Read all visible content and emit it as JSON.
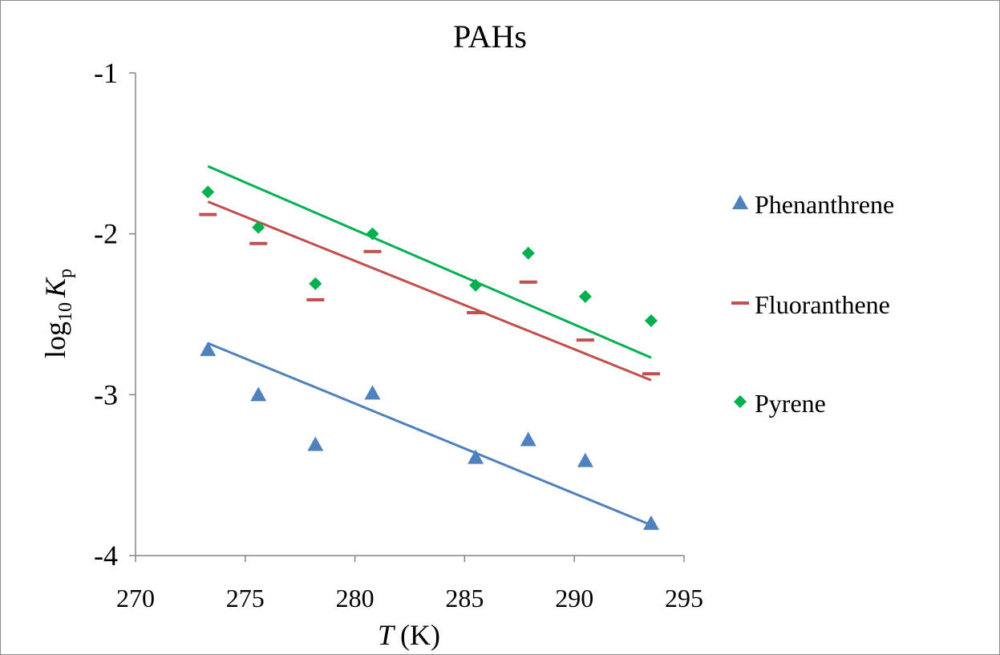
{
  "chart_data": {
    "type": "scatter",
    "title": "PAHs",
    "xlabel": {
      "var": "T",
      "unit": "(K)"
    },
    "ylabel": {
      "base": "log",
      "sub": "10",
      "var": "K",
      "varsub": "p"
    },
    "xlim": [
      270,
      295
    ],
    "ylim": [
      -4,
      -1
    ],
    "xticks": [
      "270",
      "275",
      "280",
      "285",
      "290",
      "295"
    ],
    "yticks": [
      "-1",
      "-2",
      "-3",
      "-4"
    ],
    "grid": false,
    "legend_position": "right",
    "series": [
      {
        "name": "Phenanthrene",
        "marker": "triangle",
        "color": "#4f81bd",
        "x": [
          273.3,
          275.6,
          278.2,
          280.8,
          285.5,
          287.9,
          290.5,
          293.5
        ],
        "y": [
          -2.72,
          -3.0,
          -3.31,
          -2.99,
          -3.39,
          -3.28,
          -3.41,
          -3.8
        ],
        "trend": {
          "x": [
            273.3,
            293.5
          ],
          "y": [
            -2.68,
            -3.81
          ]
        }
      },
      {
        "name": "Fluoranthene",
        "marker": "dash",
        "color": "#c0504d",
        "x": [
          273.3,
          275.6,
          278.2,
          280.8,
          285.5,
          287.9,
          290.5,
          293.5
        ],
        "y": [
          -1.88,
          -2.06,
          -2.41,
          -2.11,
          -2.49,
          -2.3,
          -2.66,
          -2.87
        ],
        "trend": {
          "x": [
            273.3,
            293.5
          ],
          "y": [
            -1.8,
            -2.91
          ]
        }
      },
      {
        "name": "Pyrene",
        "marker": "diamond",
        "color": "#00b050",
        "x": [
          273.3,
          275.6,
          278.2,
          280.8,
          285.5,
          287.9,
          290.5,
          293.5
        ],
        "y": [
          -1.74,
          -1.96,
          -2.31,
          -2.0,
          -2.32,
          -2.12,
          -2.39,
          -2.54
        ],
        "trend": {
          "x": [
            273.3,
            293.5
          ],
          "y": [
            -1.58,
            -2.77
          ]
        }
      }
    ]
  }
}
